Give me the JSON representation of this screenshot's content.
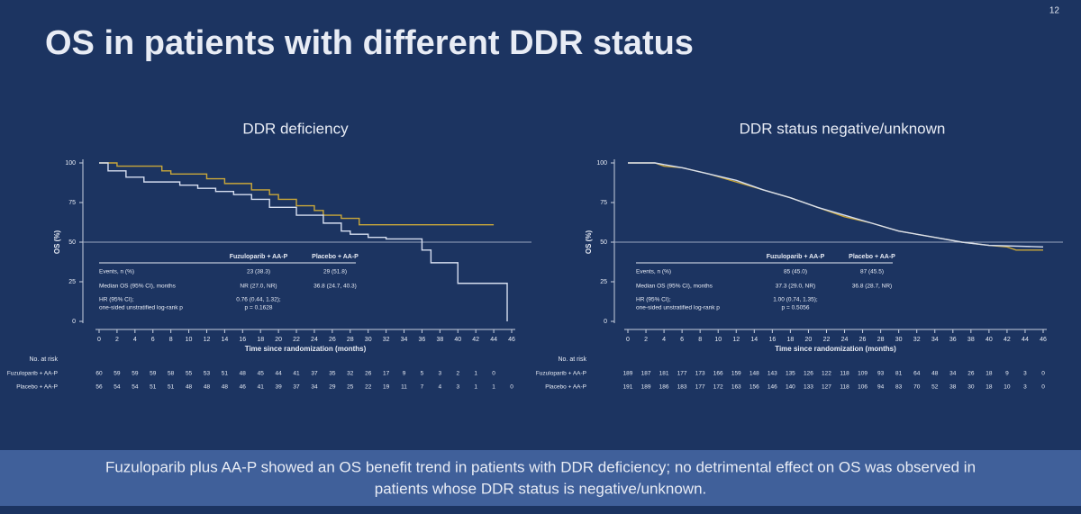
{
  "slide": {
    "page": "12",
    "title": "OS in patients with different DDR status",
    "footer": [
      "Fuzuloparib plus AA-P showed an OS benefit trend in patients with DDR deficiency; no detrimental effect on OS was observed in",
      "patients whose DDR status is negative/unknown."
    ]
  },
  "chart_data": [
    {
      "type": "line",
      "title": "DDR deficiency",
      "y_label": "OS (%)",
      "x_label": "Time since randomization (months)",
      "xlim": [
        0,
        46
      ],
      "xticks": [
        0,
        2,
        4,
        6,
        8,
        10,
        12,
        14,
        16,
        18,
        20,
        22,
        24,
        26,
        28,
        30,
        32,
        34,
        36,
        38,
        40,
        42,
        44,
        46
      ],
      "ylim": [
        0,
        100
      ],
      "yticks": [
        0,
        25,
        50,
        75,
        100
      ],
      "ref_line": 50,
      "series": [
        {
          "name": "Fuzuloparib + AA-P",
          "color": "#c9a73a",
          "x": [
            0,
            2,
            2,
            7,
            7,
            8,
            8,
            12,
            12,
            14,
            14,
            17,
            17,
            19,
            19,
            20,
            20,
            22,
            22,
            24,
            24,
            25,
            25,
            27,
            27,
            29,
            29,
            44
          ],
          "values": [
            100,
            100,
            98,
            98,
            95,
            95,
            93,
            93,
            90,
            90,
            87,
            87,
            83,
            83,
            80,
            80,
            77,
            77,
            73,
            73,
            70,
            70,
            67,
            67,
            65,
            65,
            61,
            61
          ]
        },
        {
          "name": "Placebo + AA-P",
          "color": "#d6def0",
          "x": [
            0,
            1,
            1,
            3,
            3,
            5,
            5,
            9,
            9,
            11,
            11,
            13,
            13,
            15,
            15,
            17,
            17,
            19,
            19,
            22,
            22,
            25,
            25,
            27,
            27,
            28,
            28,
            30,
            30,
            32,
            32,
            36,
            36,
            37,
            37,
            40,
            40,
            45.5,
            45.5
          ],
          "values": [
            100,
            100,
            95,
            95,
            91,
            91,
            88,
            88,
            86,
            86,
            84,
            84,
            82,
            82,
            80,
            80,
            77,
            77,
            72,
            72,
            67,
            67,
            62,
            62,
            57,
            57,
            55,
            55,
            53,
            53,
            52,
            52,
            45,
            45,
            37,
            37,
            24,
            24,
            0
          ]
        }
      ],
      "table": {
        "rows": [
          [
            "Events, n (%)",
            "23 (38.3)",
            "29 (51.8)"
          ],
          [
            "Median OS (95% CI), months",
            "NR (27.0, NR)",
            "36.8 (24.7, 40.3)"
          ],
          [
            "HR (95% CI);",
            "0.76 (0.44, 1.32);",
            ""
          ],
          [
            "one-sided unstratified log-rank p",
            "p = 0.1628",
            ""
          ]
        ]
      },
      "at_risk": {
        "label": "No. at risk",
        "rows": [
          [
            60,
            59,
            59,
            59,
            58,
            55,
            53,
            51,
            48,
            45,
            44,
            41,
            37,
            35,
            32,
            26,
            17,
            9,
            5,
            3,
            2,
            1,
            0
          ],
          [
            56,
            54,
            54,
            51,
            51,
            48,
            48,
            48,
            46,
            41,
            39,
            37,
            34,
            29,
            25,
            22,
            19,
            11,
            7,
            4,
            3,
            1,
            1,
            0
          ]
        ]
      }
    },
    {
      "type": "line",
      "title": "DDR status negative/unknown",
      "y_label": "OS (%)",
      "x_label": "Time since randomization (months)",
      "xlim": [
        0,
        46
      ],
      "xticks": [
        0,
        2,
        4,
        6,
        8,
        10,
        12,
        14,
        16,
        18,
        20,
        22,
        24,
        26,
        28,
        30,
        32,
        34,
        36,
        38,
        40,
        42,
        44,
        46
      ],
      "ylim": [
        0,
        100
      ],
      "yticks": [
        0,
        25,
        50,
        75,
        100
      ],
      "ref_line": 50,
      "series": [
        {
          "name": "Fuzuloparib + AA-P",
          "color": "#c9a73a",
          "x": [
            0,
            3,
            4,
            6,
            9,
            12,
            15,
            18,
            21,
            24,
            27,
            30,
            34,
            37,
            40,
            42,
            43,
            46
          ],
          "values": [
            100,
            100,
            98,
            97,
            93,
            88,
            83,
            78,
            72,
            66,
            62,
            57,
            53,
            50,
            48,
            47,
            45,
            45
          ]
        },
        {
          "name": "Placebo + AA-P",
          "color": "#d6def0",
          "x": [
            0,
            3,
            4,
            6,
            9,
            12,
            15,
            18,
            21,
            24,
            27,
            30,
            34,
            37,
            40,
            46
          ],
          "values": [
            100,
            100,
            99,
            97,
            93,
            89,
            83,
            78,
            72,
            67,
            62,
            57,
            53,
            50,
            48,
            47
          ]
        }
      ],
      "table": {
        "rows": [
          [
            "Events, n (%)",
            "85 (45.0)",
            "87 (45.5)"
          ],
          [
            "Median OS (95% CI), months",
            "37.3 (29.0, NR)",
            "36.8 (28.7, NR)"
          ],
          [
            "HR (95% CI);",
            "1.00 (0.74, 1.35);",
            ""
          ],
          [
            "one-sided unstratified log-rank p",
            "p = 0.5056",
            ""
          ]
        ]
      },
      "at_risk": {
        "label": "No. at risk",
        "rows": [
          [
            189,
            187,
            181,
            177,
            173,
            166,
            159,
            148,
            143,
            135,
            126,
            122,
            118,
            109,
            93,
            81,
            64,
            48,
            34,
            26,
            18,
            9,
            3,
            0
          ],
          [
            191,
            189,
            186,
            183,
            177,
            172,
            163,
            156,
            146,
            140,
            133,
            127,
            118,
            106,
            94,
            83,
            70,
            52,
            38,
            30,
            18,
            10,
            3,
            0
          ]
        ]
      }
    }
  ]
}
